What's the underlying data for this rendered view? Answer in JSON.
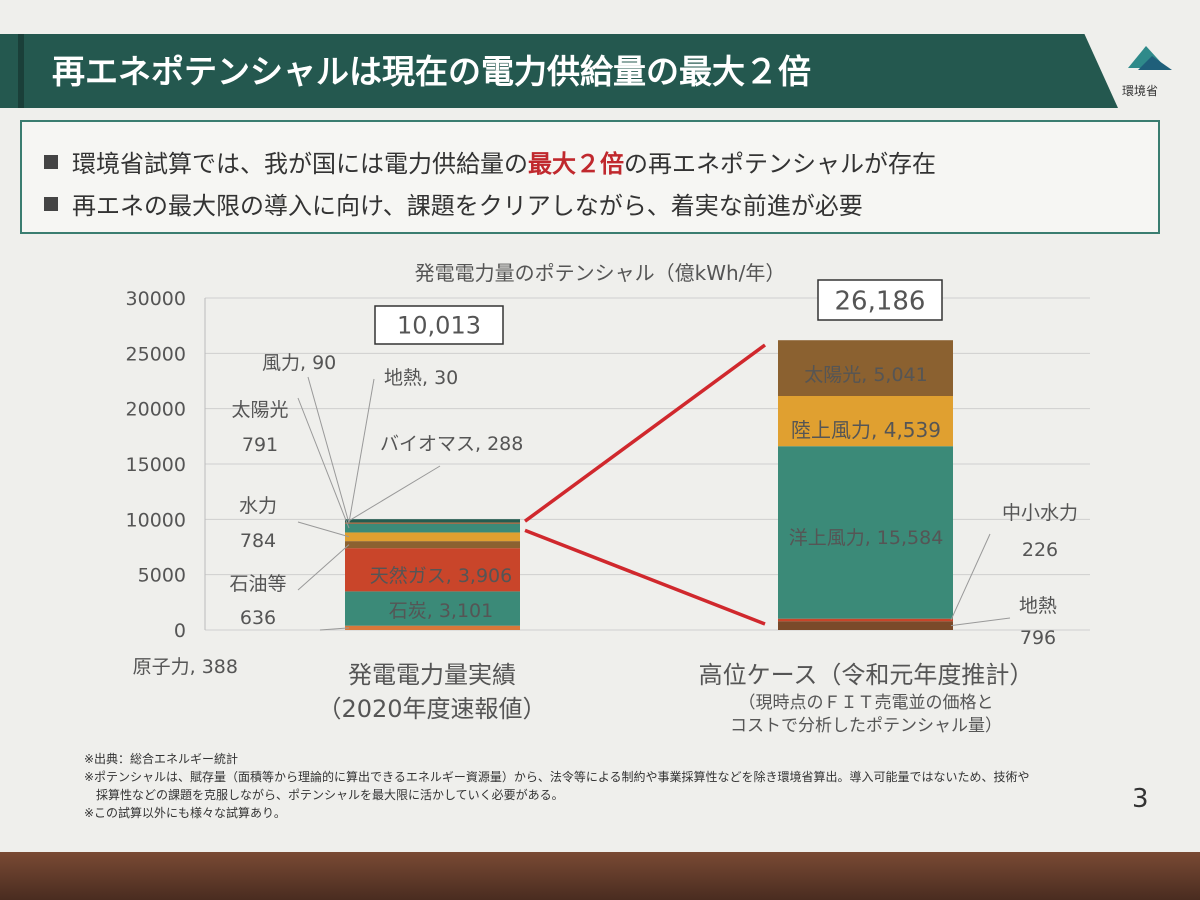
{
  "header": {
    "title": "再エネポテンシャルは現在の電力供給量の最大２倍",
    "logo_label": "環境省"
  },
  "bullets": [
    {
      "before": "環境省試算では、我が国には電力供給量の",
      "highlight": "最大２倍",
      "after": "の再エネポテンシャルが存在"
    },
    {
      "before": "再エネの最大限の導入に向け、課題をクリアしながら、着実な前進が必要",
      "highlight": "",
      "after": ""
    }
  ],
  "colors": {
    "banner": "#24584f",
    "red_accent": "#c0282d",
    "teal_segment": "#3b8a78",
    "red_segment": "#c9452a",
    "orange_segment": "#e0a030",
    "brown_segment": "#8b6130"
  },
  "chart_data": {
    "type": "bar",
    "stacked": true,
    "title": "発電電力量のポテンシャル（億kWh/年）",
    "ylim": [
      0,
      30000
    ],
    "yticks": [
      "30000",
      "25000",
      "20000",
      "15000",
      "10000",
      "5000",
      "0"
    ],
    "grid": true,
    "categories": [
      {
        "label": "発電電力量実績",
        "sublabel": "（2020年度速報値）",
        "total_label": "10,013"
      },
      {
        "label": "高位ケース（令和元年度推計）",
        "sublabel_lines": [
          "（現時点のＦＩＴ売電並の価格と",
          "コストで分析したポテンシャル量）"
        ],
        "total_label": "26,186"
      }
    ],
    "series": [
      {
        "bar": 0,
        "name": "原子力",
        "value": 388,
        "color": "#d9783a",
        "label_lines": [
          "原子力, 388"
        ]
      },
      {
        "bar": 0,
        "name": "石炭",
        "value": 3101,
        "color": "#3b8a78",
        "label_lines": [
          "石炭, 3,101"
        ]
      },
      {
        "bar": 0,
        "name": "天然ガス",
        "value": 3906,
        "color": "#c9452a",
        "label_lines": [
          "天然ガス, 3,906"
        ]
      },
      {
        "bar": 0,
        "name": "石油等",
        "value": 636,
        "color": "#8b6130",
        "label_lines": [
          "石油等",
          "636"
        ]
      },
      {
        "bar": 0,
        "name": "水力",
        "value": 784,
        "color": "#e0a030",
        "label_lines": [
          "水力",
          "784"
        ]
      },
      {
        "bar": 0,
        "name": "太陽光",
        "value": 791,
        "color": "#3b8a78",
        "label_lines": [
          "太陽光",
          "791"
        ]
      },
      {
        "bar": 0,
        "name": "風力",
        "value": 90,
        "color": "#c9452a",
        "label_lines": [
          "風力, 90"
        ]
      },
      {
        "bar": 0,
        "name": "地熱",
        "value": 30,
        "color": "#8b6130",
        "label_lines": [
          "地熱, 30"
        ]
      },
      {
        "bar": 0,
        "name": "バイオマス",
        "value": 288,
        "color": "#245c50",
        "label_lines": [
          "バイオマス, 288"
        ]
      },
      {
        "bar": 1,
        "name": "地熱",
        "value": 796,
        "color": "#7a4a2a",
        "label_lines": [
          "地熱",
          "796"
        ]
      },
      {
        "bar": 1,
        "name": "中小水力",
        "value": 226,
        "color": "#c9452a",
        "label_lines": [
          "中小水力",
          "226"
        ]
      },
      {
        "bar": 1,
        "name": "洋上風力",
        "value": 15584,
        "color": "#3b8a78",
        "label_lines": [
          "洋上風力, 15,584"
        ]
      },
      {
        "bar": 1,
        "name": "陸上風力",
        "value": 4539,
        "color": "#e0a030",
        "label_lines": [
          "陸上風力, 4,539"
        ]
      },
      {
        "bar": 1,
        "name": "太陽光",
        "value": 5041,
        "color": "#8b6130",
        "label_lines": [
          "太陽光, 5,041"
        ]
      }
    ]
  },
  "footnotes": [
    "※出典：総合エネルギー統計",
    "※ポテンシャルは、賦存量（面積等から理論的に算出できるエネルギー資源量）から、法令等による制約や事業採算性などを除き環境省算出。導入可能量ではないため、技術や",
    "　採算性などの課題を克服しながら、ポテンシャルを最大限に活かしていく必要がある。",
    "※この試算以外にも様々な試算あり。"
  ],
  "page_number": "3"
}
